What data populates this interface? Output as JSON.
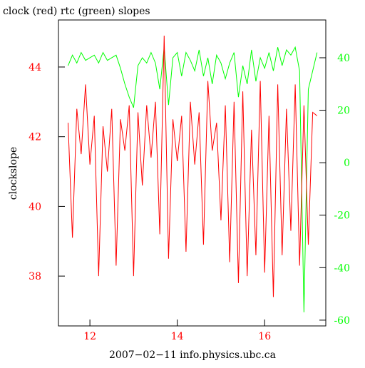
{
  "chart_data": {
    "type": "line",
    "title": "clock (red) rtc (green) slopes",
    "ylabel": "clockslope",
    "xlabel": "2007−02−11 info.physics.ubc.ca",
    "x": [
      11.5,
      11.6,
      11.7,
      11.8,
      11.9,
      12.0,
      12.1,
      12.2,
      12.3,
      12.4,
      12.5,
      12.6,
      12.7,
      12.8,
      12.9,
      13.0,
      13.1,
      13.2,
      13.3,
      13.4,
      13.5,
      13.6,
      13.7,
      13.8,
      13.9,
      14.0,
      14.1,
      14.2,
      14.3,
      14.4,
      14.5,
      14.6,
      14.7,
      14.8,
      14.9,
      15.0,
      15.1,
      15.2,
      15.3,
      15.4,
      15.5,
      15.6,
      15.7,
      15.8,
      15.9,
      16.0,
      16.1,
      16.2,
      16.3,
      16.4,
      16.5,
      16.6,
      16.7,
      16.8,
      16.9,
      17.0,
      17.1,
      17.2
    ],
    "series": [
      {
        "color": "#ff0000",
        "values": [
          42.4,
          39.1,
          42.8,
          41.5,
          43.5,
          41.2,
          42.6,
          38.0,
          42.3,
          41.0,
          42.8,
          38.3,
          42.5,
          41.6,
          42.9,
          38.0,
          42.7,
          40.6,
          42.9,
          41.4,
          43.0,
          39.2,
          44.9,
          38.5,
          42.5,
          41.3,
          42.6,
          38.7,
          43.0,
          41.2,
          42.7,
          38.9,
          43.6,
          41.6,
          42.4,
          39.6,
          42.9,
          38.4,
          43.0,
          37.8,
          43.3,
          38.0,
          42.2,
          38.6,
          43.6,
          38.1,
          42.6,
          37.4,
          43.5,
          38.6,
          42.8,
          39.3,
          43.5,
          38.3,
          42.9,
          38.9,
          42.7,
          42.6
        ]
      },
      {
        "color": "#00ff00",
        "axis": "y2",
        "values": [
          37,
          41,
          38,
          42,
          39,
          40,
          41,
          38,
          42,
          39,
          40,
          41,
          36,
          30,
          25,
          21,
          37,
          40,
          38,
          42,
          38,
          28,
          44,
          22,
          40,
          42,
          33,
          42,
          39,
          35,
          43,
          33,
          40,
          30,
          41,
          38,
          32,
          38,
          42,
          25,
          37,
          30,
          43,
          31,
          40,
          36,
          42,
          35,
          44,
          37,
          43,
          41,
          44,
          35,
          -57,
          28,
          35,
          42
        ]
      }
    ],
    "xlim": [
      11.28,
      17.4
    ],
    "xticks": [
      12,
      14,
      16
    ],
    "xtick_color": "#ff0000",
    "ylim": [
      36.57,
      45.35
    ],
    "yticks": [
      38,
      40,
      42,
      44
    ],
    "ytick_color": "#ff0000",
    "y2lim": [
      -62.2,
      54.4
    ],
    "y2ticks": [
      -60,
      -40,
      -20,
      0,
      20,
      40
    ],
    "y2tick_color": "#00ff00"
  }
}
